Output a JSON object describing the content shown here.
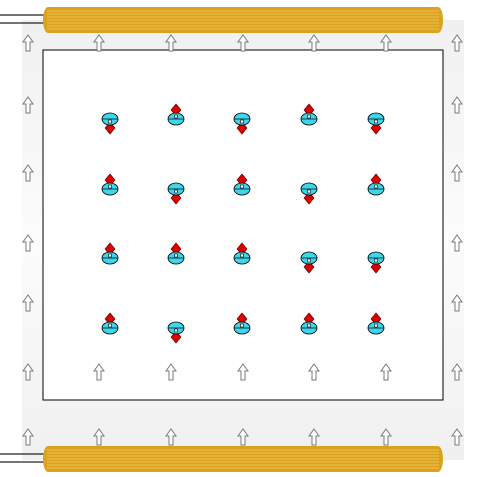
{
  "colors": {
    "background": "#ffffff",
    "field_band": "#f3f3f3",
    "coil": "#dca21c",
    "coil_line": "#f4d27a",
    "coil_lead": "#222222",
    "sample_border": "#000000",
    "sample_fill": "#ffffff",
    "field_arrow": "#7a7a7a",
    "spin_arrow": "#e00000",
    "spin_body": "#3ed6ea"
  },
  "icons": {
    "field_arrow": "hollow-up-arrow-icon",
    "spin": "spin-precession-icon"
  },
  "spin_states": [
    [
      "down",
      "up",
      "down",
      "up",
      "down"
    ],
    [
      "up",
      "down",
      "up",
      "down",
      "up"
    ],
    [
      "up",
      "up",
      "up",
      "down",
      "down"
    ],
    [
      "up",
      "down",
      "up",
      "up",
      "up"
    ]
  ]
}
